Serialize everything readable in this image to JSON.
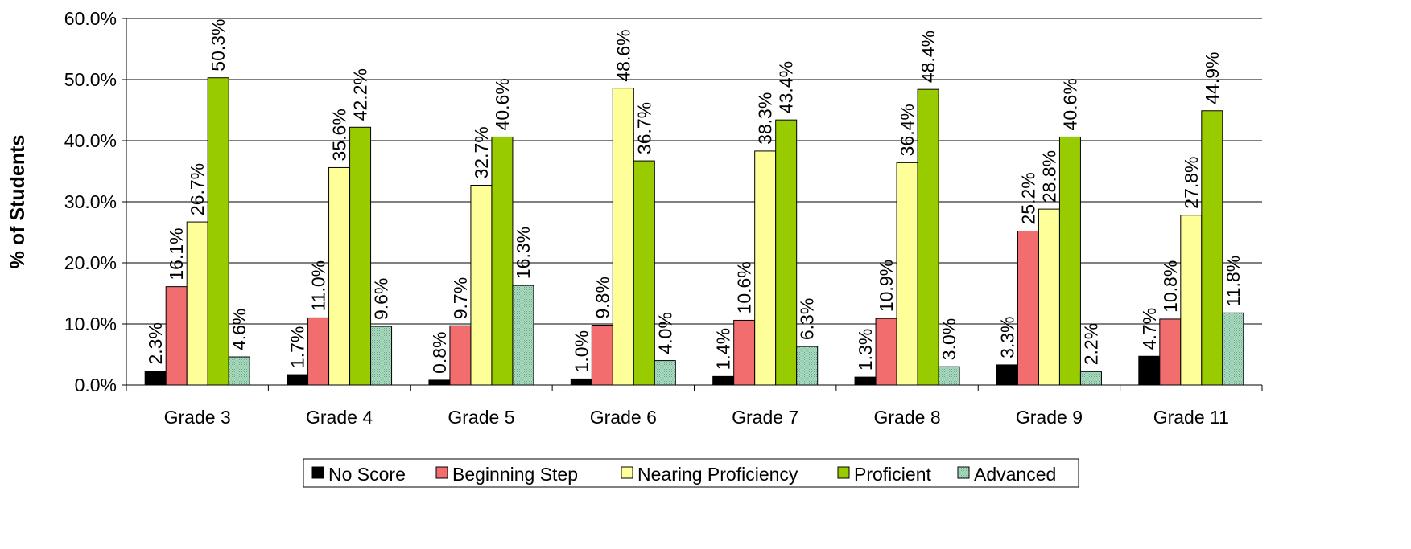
{
  "chart_data": {
    "type": "bar",
    "title": "",
    "xlabel": "",
    "ylabel": "% of Students",
    "ylim": [
      0,
      60
    ],
    "yticks": [
      0,
      10,
      20,
      30,
      40,
      50,
      60
    ],
    "ytick_labels": [
      "0.0%",
      "10.0%",
      "20.0%",
      "30.0%",
      "40.0%",
      "50.0%",
      "60.0%"
    ],
    "grid": true,
    "legend_position": "bottom",
    "categories": [
      "Grade 3",
      "Grade 4",
      "Grade 5",
      "Grade 6",
      "Grade 7",
      "Grade 8",
      "Grade 9",
      "Grade 11"
    ],
    "series": [
      {
        "name": "No Score",
        "color": "#000000",
        "values": [
          2.3,
          1.7,
          0.8,
          1.0,
          1.4,
          1.3,
          3.3,
          4.7
        ],
        "labels": [
          "2.3%",
          "1.7%",
          "0.8%",
          "1.0%",
          "1.4%",
          "1.3%",
          "3.3%",
          "4.7%"
        ]
      },
      {
        "name": "Beginning Step",
        "color": "#f26d6d",
        "values": [
          16.1,
          11.0,
          9.7,
          9.8,
          10.6,
          10.9,
          25.2,
          10.8
        ],
        "labels": [
          "16.1%",
          "11.0%",
          "9.7%",
          "9.8%",
          "10.6%",
          "10.9%",
          "25.2%",
          "10.8%"
        ]
      },
      {
        "name": "Nearing Proficiency",
        "color": "#ffff99",
        "values": [
          26.7,
          35.6,
          32.7,
          48.6,
          38.3,
          36.4,
          28.8,
          27.8
        ],
        "labels": [
          "26.7%",
          "35.6%",
          "32.7%",
          "48.6%",
          "38.3%",
          "36.4%",
          "28.8%",
          "27.8%"
        ]
      },
      {
        "name": "Proficient",
        "color": "#99cc00",
        "values": [
          50.3,
          42.2,
          40.6,
          36.7,
          43.4,
          48.4,
          40.6,
          44.9
        ],
        "labels": [
          "50.3%",
          "42.2%",
          "40.6%",
          "36.7%",
          "43.4%",
          "48.4%",
          "40.6%",
          "44.9%"
        ]
      },
      {
        "name": "Advanced",
        "color": "#99d6b3",
        "values": [
          4.6,
          9.6,
          16.3,
          4.0,
          6.3,
          3.0,
          2.2,
          11.8
        ],
        "labels": [
          "4.6%",
          "9.6%",
          "16.3%",
          "4.0%",
          "6.3%",
          "3.0%",
          "2.2%",
          "11.8%"
        ]
      }
    ]
  }
}
